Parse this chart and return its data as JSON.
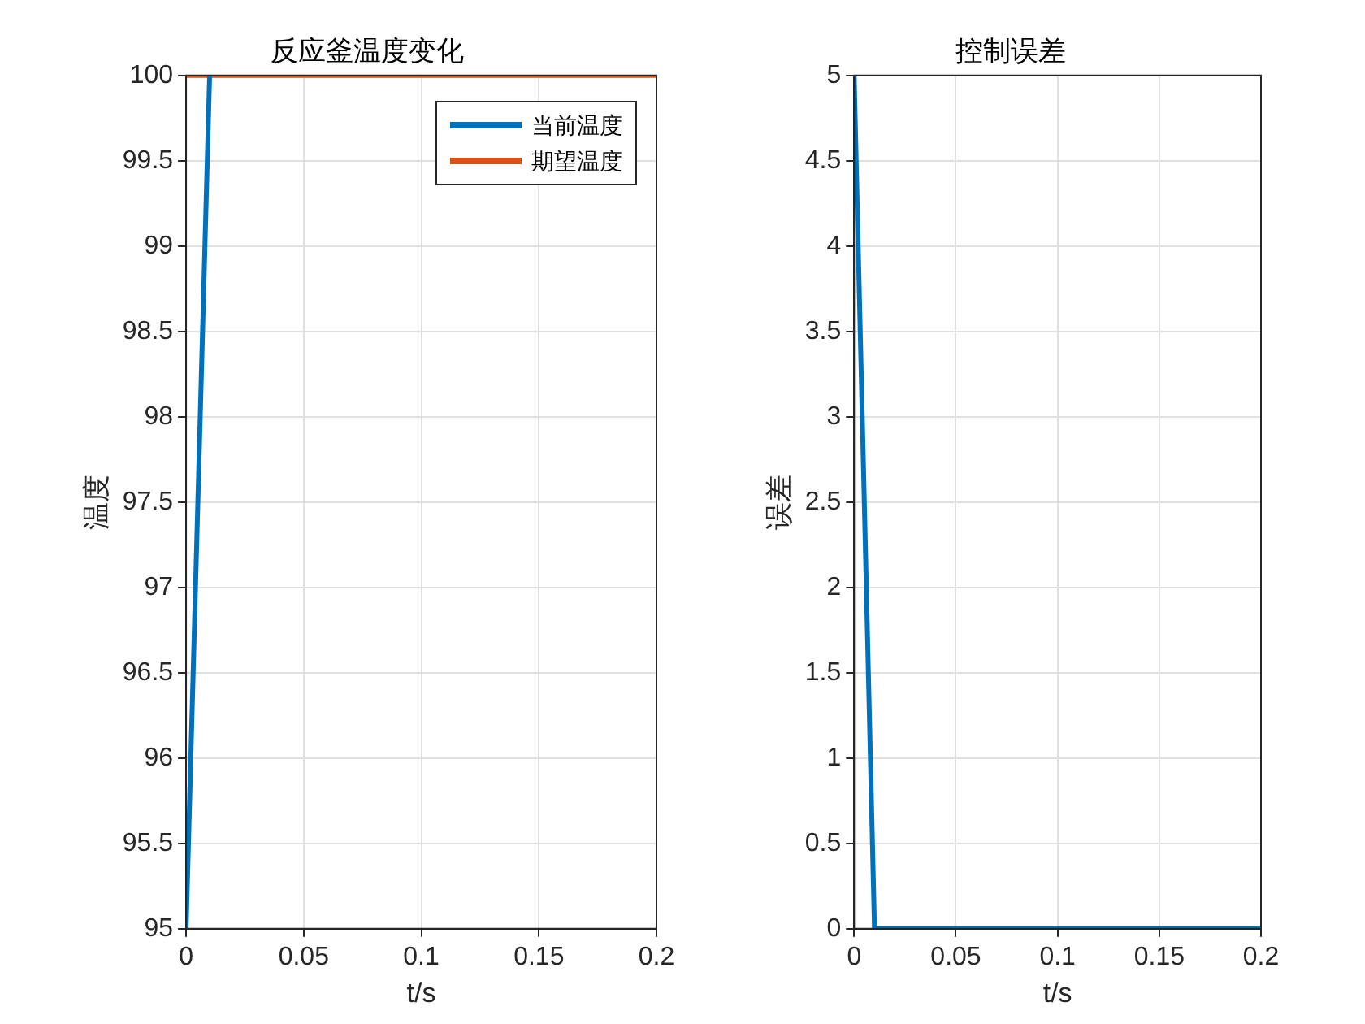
{
  "chart_data": [
    {
      "type": "line",
      "title": "反应釜温度变化",
      "xlabel": "t/s",
      "ylabel": "温度",
      "xlim": [
        0,
        0.2
      ],
      "xticks": [
        0,
        0.05,
        0.1,
        0.15,
        0.2
      ],
      "ylim": [
        95,
        100
      ],
      "yticks": [
        95,
        95.5,
        96,
        96.5,
        97,
        97.5,
        98,
        98.5,
        99,
        99.5,
        100
      ],
      "grid": true,
      "legend": "top right",
      "marker": "none",
      "line_style": "solid",
      "series": [
        {
          "name": "当前温度",
          "color": "#0072bd",
          "x": [
            0,
            0.01
          ],
          "values": [
            95,
            100
          ]
        },
        {
          "name": "期望温度",
          "color": "#d95319",
          "x": [
            0,
            0.2
          ],
          "values": [
            100,
            100
          ]
        }
      ]
    },
    {
      "type": "line",
      "title": "控制误差",
      "xlabel": "t/s",
      "ylabel": "误差",
      "xlim": [
        0,
        0.2
      ],
      "xticks": [
        0,
        0.05,
        0.1,
        0.15,
        0.2
      ],
      "ylim": [
        0,
        5
      ],
      "yticks": [
        0,
        0.5,
        1,
        1.5,
        2,
        2.5,
        3,
        3.5,
        4,
        4.5,
        5
      ],
      "grid": true,
      "legend": false,
      "marker": "none",
      "line_style": "solid",
      "series": [
        {
          "color": "#0072bd",
          "x": [
            0,
            0.01,
            0.2
          ],
          "values": [
            5,
            0,
            0
          ]
        }
      ]
    }
  ]
}
